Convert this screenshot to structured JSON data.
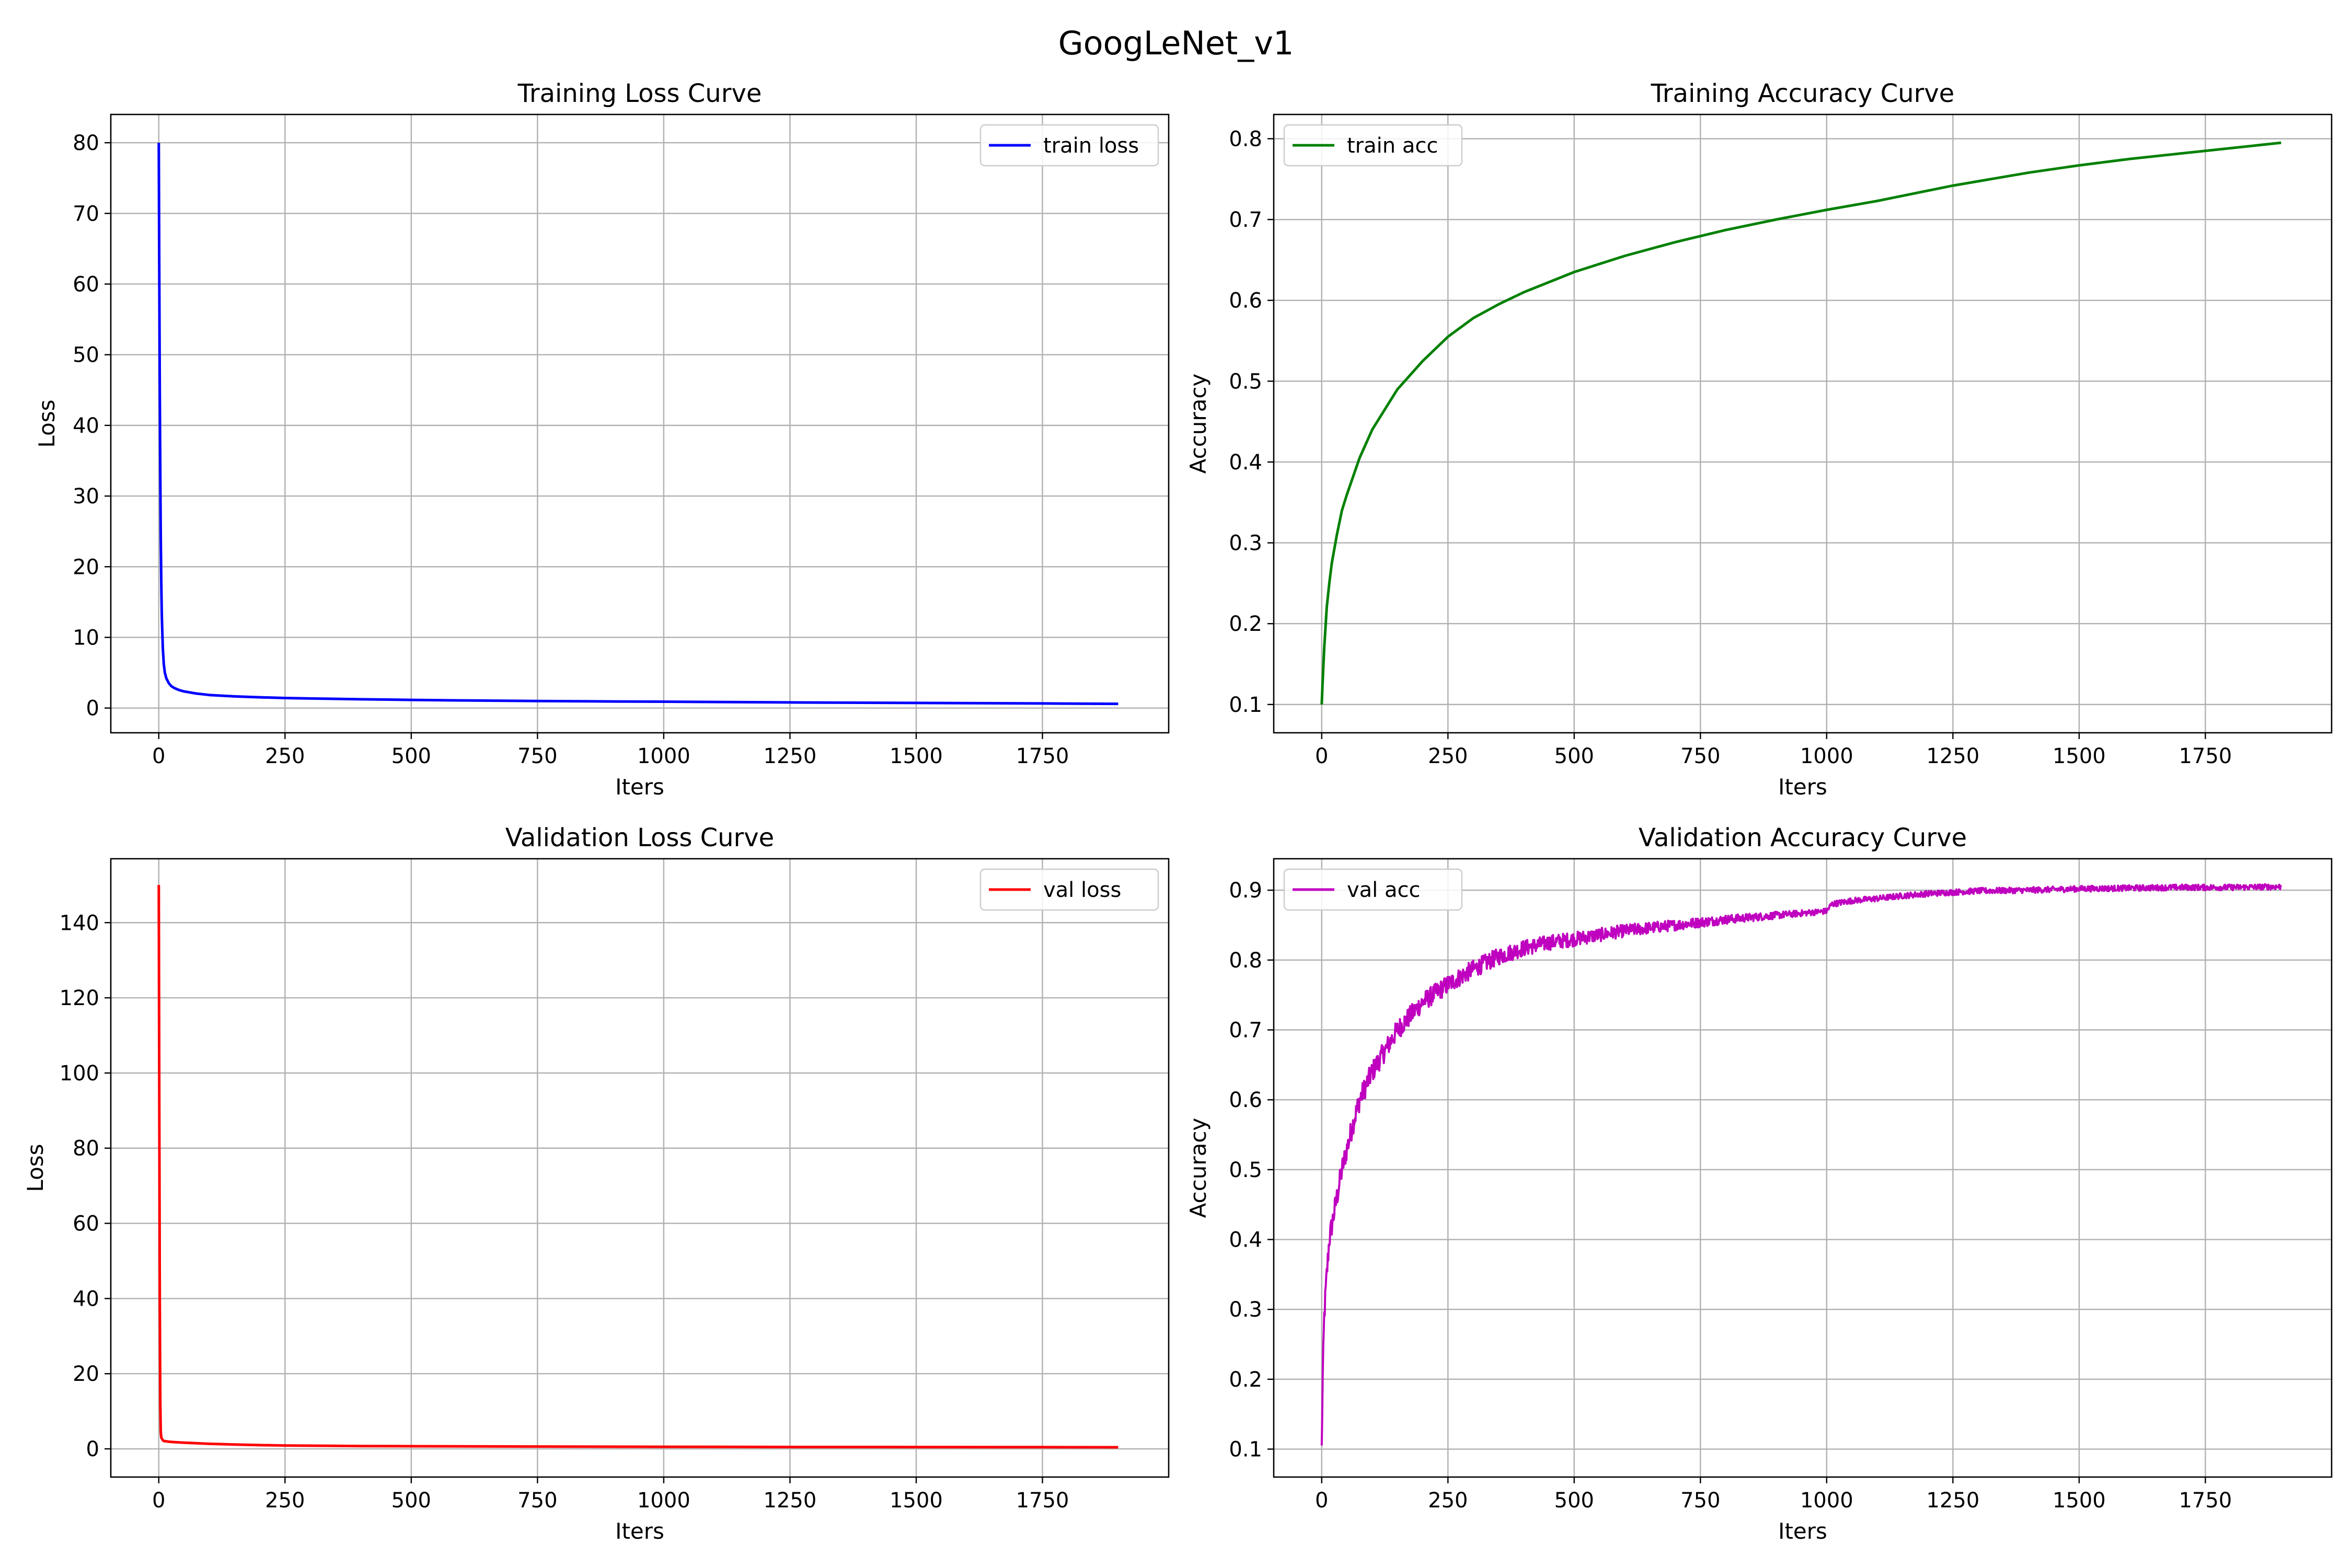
{
  "figure": {
    "title": "GoogLeNet_v1"
  },
  "chart_data": [
    {
      "type": "line",
      "title": "Training Loss Curve",
      "xlabel": "Iters",
      "ylabel": "Loss",
      "xlim": [
        -95,
        2000
      ],
      "ylim": [
        -3.5,
        84
      ],
      "xticks": [
        0,
        250,
        500,
        750,
        1000,
        1250,
        1500,
        1750
      ],
      "yticks": [
        0,
        10,
        20,
        30,
        40,
        50,
        60,
        70,
        80
      ],
      "grid": true,
      "legend_position": "upper right",
      "series": [
        {
          "name": "train loss",
          "color": "#0000ff",
          "noise": 0,
          "x": [
            0,
            1,
            2,
            3,
            4,
            5,
            6,
            8,
            10,
            12,
            15,
            20,
            25,
            30,
            40,
            50,
            75,
            100,
            150,
            200,
            250,
            300,
            400,
            500,
            600,
            750,
            900,
            1000,
            1250,
            1500,
            1750,
            1900
          ],
          "y": [
            80,
            62,
            45,
            33,
            24,
            17.5,
            13,
            8.5,
            6.2,
            5.0,
            4.2,
            3.5,
            3.1,
            2.85,
            2.55,
            2.35,
            2.05,
            1.85,
            1.65,
            1.52,
            1.42,
            1.35,
            1.24,
            1.15,
            1.08,
            1.0,
            0.93,
            0.9,
            0.8,
            0.72,
            0.65,
            0.6
          ]
        }
      ]
    },
    {
      "type": "line",
      "title": "Training Accuracy Curve",
      "xlabel": "Iters",
      "ylabel": "Accuracy",
      "xlim": [
        -95,
        2000
      ],
      "ylim": [
        0.065,
        0.83
      ],
      "xticks": [
        0,
        250,
        500,
        750,
        1000,
        1250,
        1500,
        1750
      ],
      "yticks": [
        0.1,
        0.2,
        0.3,
        0.4,
        0.5,
        0.6,
        0.7,
        0.8
      ],
      "grid": true,
      "legend_position": "upper left",
      "series": [
        {
          "name": "train acc",
          "color": "#008000",
          "noise": 0,
          "x": [
            0,
            2,
            5,
            10,
            15,
            20,
            30,
            40,
            50,
            75,
            100,
            125,
            150,
            200,
            250,
            300,
            350,
            400,
            500,
            600,
            700,
            800,
            900,
            1000,
            1100,
            1250,
            1400,
            1500,
            1600,
            1750,
            1900
          ],
          "y": [
            0.1,
            0.13,
            0.17,
            0.22,
            0.25,
            0.275,
            0.31,
            0.34,
            0.36,
            0.405,
            0.44,
            0.465,
            0.49,
            0.525,
            0.555,
            0.578,
            0.595,
            0.61,
            0.635,
            0.655,
            0.672,
            0.687,
            0.7,
            0.712,
            0.723,
            0.742,
            0.758,
            0.767,
            0.775,
            0.785,
            0.795
          ]
        }
      ]
    },
    {
      "type": "line",
      "title": "Validation Loss Curve",
      "xlabel": "Iters",
      "ylabel": "Loss",
      "xlim": [
        -95,
        2000
      ],
      "ylim": [
        -7.5,
        157
      ],
      "xticks": [
        0,
        250,
        500,
        750,
        1000,
        1250,
        1500,
        1750
      ],
      "yticks": [
        0,
        20,
        40,
        60,
        80,
        100,
        120,
        140
      ],
      "grid": true,
      "legend_position": "upper right",
      "series": [
        {
          "name": "val loss",
          "color": "#ff0000",
          "noise": 0,
          "x": [
            0,
            1,
            2,
            3,
            4,
            5,
            8,
            10,
            20,
            30,
            50,
            75,
            100,
            150,
            200,
            250,
            300,
            400,
            500,
            750,
            1000,
            1250,
            1500,
            1750,
            1900
          ],
          "y": [
            150,
            95,
            40,
            12,
            4.5,
            3.0,
            2.3,
            2.1,
            1.9,
            1.8,
            1.65,
            1.5,
            1.35,
            1.15,
            1.0,
            0.9,
            0.85,
            0.75,
            0.7,
            0.62,
            0.55,
            0.5,
            0.48,
            0.45,
            0.43
          ]
        }
      ]
    },
    {
      "type": "line",
      "title": "Validation Accuracy Curve",
      "xlabel": "Iters",
      "ylabel": "Accuracy",
      "xlim": [
        -95,
        2000
      ],
      "ylim": [
        0.06,
        0.945
      ],
      "xticks": [
        0,
        250,
        500,
        750,
        1000,
        1250,
        1500,
        1750
      ],
      "yticks": [
        0.1,
        0.2,
        0.3,
        0.4,
        0.5,
        0.6,
        0.7,
        0.8,
        0.9
      ],
      "grid": true,
      "legend_position": "upper left",
      "series": [
        {
          "name": "val acc",
          "color": "#bf00bf",
          "noise": 0.012,
          "x": [
            0,
            2,
            5,
            10,
            15,
            20,
            30,
            40,
            50,
            60,
            75,
            100,
            125,
            150,
            175,
            200,
            250,
            300,
            350,
            400,
            450,
            500,
            600,
            700,
            800,
            900,
            1000,
            1010,
            1050,
            1100,
            1150,
            1200,
            1250,
            1300,
            1400,
            1500,
            1600,
            1700,
            1800,
            1900
          ],
          "y": [
            0.1,
            0.2,
            0.29,
            0.35,
            0.4,
            0.42,
            0.46,
            0.5,
            0.53,
            0.56,
            0.6,
            0.64,
            0.67,
            0.7,
            0.72,
            0.74,
            0.765,
            0.787,
            0.805,
            0.817,
            0.825,
            0.83,
            0.842,
            0.85,
            0.858,
            0.864,
            0.87,
            0.88,
            0.885,
            0.888,
            0.892,
            0.895,
            0.897,
            0.899,
            0.9,
            0.902,
            0.903,
            0.904,
            0.904,
            0.905
          ]
        }
      ]
    }
  ]
}
